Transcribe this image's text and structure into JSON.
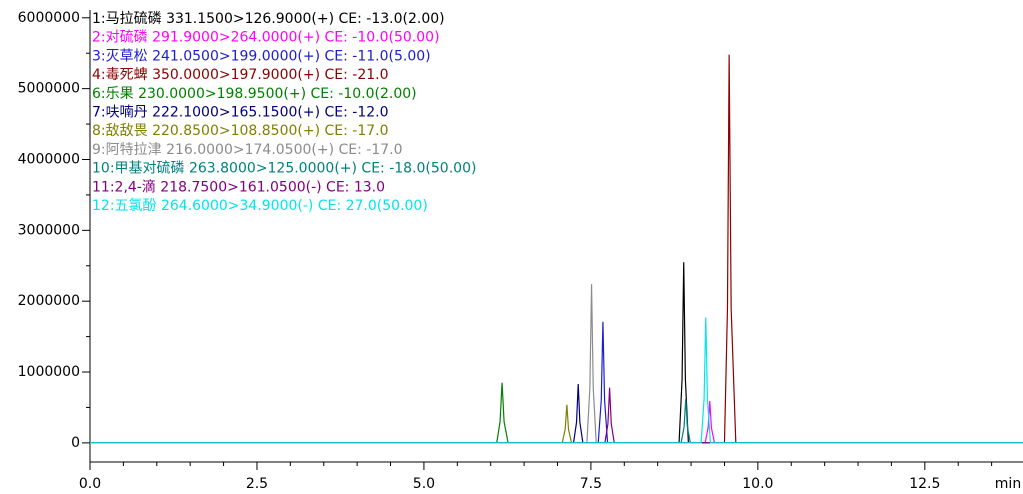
{
  "chart_data": {
    "type": "line",
    "xlabel": "min",
    "xlim": [
      0,
      13.97
    ],
    "ylim": [
      -270000,
      6110000
    ],
    "xticks": [
      {
        "value": 0,
        "label": "0.0"
      },
      2.5,
      {
        "value": 5,
        "label": "5.0"
      },
      7.5,
      {
        "value": 10,
        "label": "10.0"
      },
      12.5
    ],
    "xminorticks": [
      0.5,
      1,
      1.5,
      2,
      3,
      3.5,
      4,
      4.5,
      5.5,
      6,
      6.5,
      7,
      8,
      8.5,
      9,
      9.5,
      10.5,
      11,
      11.5,
      12,
      13,
      13.5
    ],
    "yticks": [
      0,
      1000000,
      2000000,
      3000000,
      4000000,
      5000000,
      6000000
    ],
    "yminorticks": [
      500000,
      1500000,
      2500000,
      3500000,
      4500000,
      5500000
    ],
    "series": [
      {
        "name": "1:马拉硫磷 331.1500>126.9000(+) CE: -13.0(2.00)",
        "color": "#000000",
        "x": [
          0,
          8.82,
          8.865,
          8.89,
          8.915,
          8.96,
          13.97
        ],
        "values": [
          0,
          0,
          890000,
          2550000,
          890000,
          0,
          0
        ]
      },
      {
        "name": "2:对硫磷 291.9000>264.0000(+) CE: -10.0(50.00)",
        "color": "#ff00ff",
        "x": [
          0,
          9.21,
          9.255,
          9.28,
          9.305,
          9.35,
          13.97
        ],
        "values": [
          0,
          0,
          210000,
          590000,
          210000,
          0,
          0
        ]
      },
      {
        "name": "3:灭草松 241.0500>199.0000(+) CE: -11.0(5.00)",
        "color": "#1c1cd6",
        "x": [
          0,
          7.61,
          7.655,
          7.68,
          7.705,
          7.75,
          13.97
        ],
        "values": [
          0,
          0,
          600000,
          1710000,
          600000,
          0,
          0
        ]
      },
      {
        "name": "4:毒死蜱 350.0000>197.9000(+) CE: -21.0",
        "color": "#8b0000",
        "x": [
          0,
          9.5,
          9.545,
          9.57,
          9.6,
          9.67,
          13.97
        ],
        "values": [
          0,
          0,
          1900000,
          5480000,
          1900000,
          0,
          0
        ]
      },
      {
        "name": "6:乐果 230.0000>198.9500(+) CE: -10.0(2.00)",
        "color": "#008000",
        "x": [
          0,
          6.09,
          6.14,
          6.17,
          6.2,
          6.26,
          13.97
        ],
        "values": [
          0,
          0,
          300000,
          850000,
          300000,
          0,
          0
        ]
      },
      {
        "name": "7:呋喃丹 222.1000>165.1500(+) CE: -12.0",
        "color": "#000080",
        "x": [
          0,
          7.24,
          7.285,
          7.31,
          7.335,
          7.38,
          13.97
        ],
        "values": [
          0,
          0,
          290000,
          830000,
          290000,
          0,
          0
        ]
      },
      {
        "name": "8:敌敌畏 220.8500>108.8500(+) CE: -17.0",
        "color": "#808000",
        "x": [
          0,
          7.07,
          7.115,
          7.14,
          7.165,
          7.21,
          13.97
        ],
        "values": [
          0,
          0,
          190000,
          540000,
          190000,
          0,
          0
        ]
      },
      {
        "name": "9:阿特拉津 216.0000>174.0500(+) CE: -17.0",
        "color": "#8c8c8c",
        "x": [
          0,
          7.44,
          7.485,
          7.51,
          7.535,
          7.58,
          13.97
        ],
        "values": [
          0,
          0,
          780000,
          2240000,
          780000,
          0,
          0
        ]
      },
      {
        "name": "10:甲基对硫磷 263.8000>125.0000(+) CE: -18.0(50.00)",
        "color": "#008080",
        "x": [
          0,
          8.85,
          8.895,
          8.92,
          8.945,
          8.99,
          13.97
        ],
        "values": [
          0,
          0,
          220000,
          620000,
          220000,
          0,
          0
        ]
      },
      {
        "name": "11:2,4-滴 218.7500>161.0500(-) CE: 13.0",
        "color": "#800080",
        "x": [
          0,
          7.71,
          7.755,
          7.78,
          7.805,
          7.85,
          13.97
        ],
        "values": [
          0,
          0,
          270000,
          780000,
          270000,
          0,
          0
        ]
      },
      {
        "name": "12:五氯酚 264.6000>34.9000(-) CE: 27.0(50.00)",
        "color": "#00e5ee",
        "x": [
          0,
          9.15,
          9.195,
          9.22,
          9.245,
          9.29,
          13.97
        ],
        "values": [
          0,
          0,
          620000,
          1770000,
          620000,
          0,
          0
        ]
      }
    ]
  }
}
